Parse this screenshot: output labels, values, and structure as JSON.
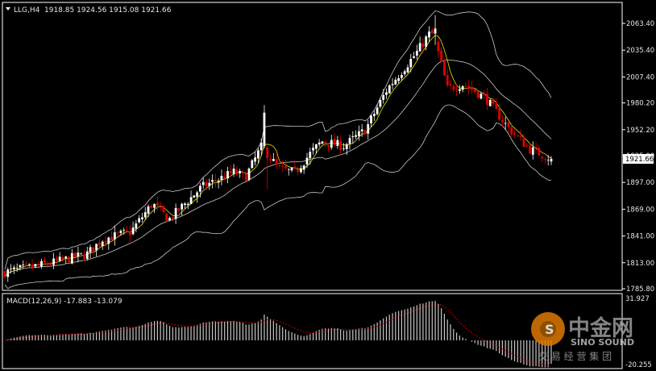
{
  "main_chart": {
    "header_symbol": "LLG,H4",
    "header_ohlc": "1918.85 1924.56 1915.08 1921.66",
    "current_price_label": "1921.66",
    "current_price": 1921.66,
    "y_ticks": [
      "2063.40",
      "2035.40",
      "2007.40",
      "1980.20",
      "1952.20",
      "1925.00",
      "1897.00",
      "1869.00",
      "1841.00",
      "1813.00",
      "1785.80"
    ]
  },
  "macd": {
    "label": "MACD(12,26,9) -17.883 -13.079",
    "y_max_label": "31.927",
    "y_min_label": "-20.255",
    "y_max": 31.927,
    "y_min": -20.255
  },
  "watermark": {
    "cn_title": "中金网",
    "en_title": "SINO SOUND",
    "tagline": "交 易 经 营 集 团"
  },
  "colors": {
    "background": "#000000",
    "up_candle": "#ffffff",
    "down_candle": "#e00000",
    "bollinger": "#c8c8c8",
    "ma_line": "#e8e000",
    "macd_hist": "#c8c8c8",
    "macd_signal": "#e00000",
    "axis": "#ffffff"
  },
  "chart_data": [
    {
      "type": "candlestick",
      "title": "LLG,H4",
      "ylim": [
        1785.8,
        2063.4
      ],
      "indicators": [
        "Bollinger Bands",
        "Moving Average"
      ],
      "trend_keypoints": [
        {
          "phase": "start",
          "close": 1805
        },
        {
          "phase": "rise",
          "close": 1840
        },
        {
          "phase": "rise",
          "close": 1885
        },
        {
          "phase": "rise",
          "close": 1915
        },
        {
          "phase": "spike",
          "high": 1978,
          "close": 1935
        },
        {
          "phase": "dip",
          "close": 1902
        },
        {
          "phase": "rise",
          "close": 1935
        },
        {
          "phase": "rise",
          "close": 1995
        },
        {
          "phase": "peak",
          "high": 2072,
          "close": 2050
        },
        {
          "phase": "drop",
          "close": 1990
        },
        {
          "phase": "decline",
          "close": 1950
        },
        {
          "phase": "end",
          "close": 1921.66
        }
      ],
      "last_bar": {
        "open": 1918.85,
        "high": 1924.56,
        "low": 1915.08,
        "close": 1921.66
      }
    },
    {
      "type": "bar",
      "title": "MACD(12,26,9)",
      "ylim": [
        -20.255,
        31.927
      ],
      "macd_main_last": -17.883,
      "macd_signal_last": -13.079
    }
  ]
}
